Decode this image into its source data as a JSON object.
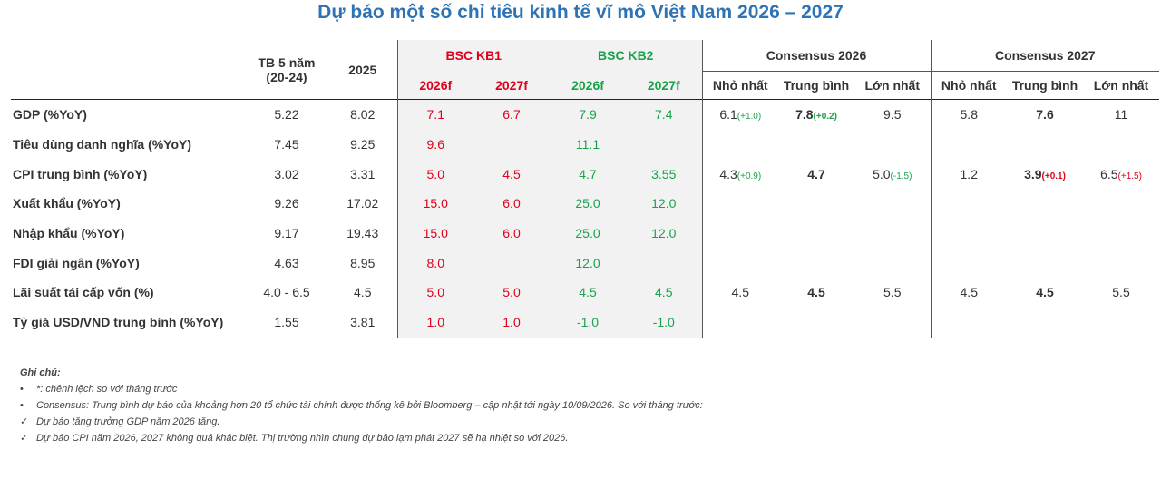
{
  "title": "Dự báo một số chỉ tiêu kinh tế vĩ mô Việt Nam 2026 – 2027",
  "headers": {
    "tb5_line1": "TB 5 năm",
    "tb5_line2": "(20-24)",
    "y2025": "2025",
    "bsc_kb1": "BSC KB1",
    "bsc_kb2": "BSC KB2",
    "consensus_2026": "Consensus 2026",
    "consensus_2027": "Consensus 2027",
    "f2026": "2026f",
    "f2027": "2027f",
    "min": "Nhỏ nhất",
    "avg": "Trung bình",
    "max": "Lớn nhất"
  },
  "rows": [
    {
      "label": "GDP (%YoY)",
      "tb5": "5.22",
      "y2025": "8.02",
      "kb1_2026": "7.1",
      "kb1_2027": "6.7",
      "kb2_2026": "7.9",
      "kb2_2027": "7.4",
      "c26_min": "6.1",
      "c26_min_d": "(+1.0)",
      "c26_avg": "7.8",
      "c26_avg_d": "(+0.2)",
      "c26_max": "9.5",
      "c26_max_d": "",
      "c27_min": "5.8",
      "c27_min_d": "",
      "c27_avg": "7.6",
      "c27_avg_d": "",
      "c27_max": "11",
      "c27_max_d": ""
    },
    {
      "label": "Tiêu dùng danh nghĩa (%YoY)",
      "tb5": "7.45",
      "y2025": "9.25",
      "kb1_2026": "9.6",
      "kb1_2027": "",
      "kb2_2026": "11.1",
      "kb2_2027": "",
      "c26_min": "",
      "c26_min_d": "",
      "c26_avg": "",
      "c26_avg_d": "",
      "c26_max": "",
      "c26_max_d": "",
      "c27_min": "",
      "c27_min_d": "",
      "c27_avg": "",
      "c27_avg_d": "",
      "c27_max": "",
      "c27_max_d": ""
    },
    {
      "label": "CPI trung bình (%YoY)",
      "tb5": "3.02",
      "y2025": "3.31",
      "kb1_2026": "5.0",
      "kb1_2027": "4.5",
      "kb2_2026": "4.7",
      "kb2_2027": "3.55",
      "c26_min": "4.3",
      "c26_min_d": "(+0.9)",
      "c26_avg": "4.7",
      "c26_avg_d": "",
      "c26_max": "5.0",
      "c26_max_d": "(-1.5)",
      "c27_min": "1.2",
      "c27_min_d": "",
      "c27_avg": "3.9",
      "c27_avg_d": "(+0.1)",
      "c27_max": "6.5",
      "c27_max_d": "(+1.5)"
    },
    {
      "label": "Xuất khẩu (%YoY)",
      "tb5": "9.26",
      "y2025": "17.02",
      "kb1_2026": "15.0",
      "kb1_2027": "6.0",
      "kb2_2026": "25.0",
      "kb2_2027": "12.0",
      "c26_min": "",
      "c26_min_d": "",
      "c26_avg": "",
      "c26_avg_d": "",
      "c26_max": "",
      "c26_max_d": "",
      "c27_min": "",
      "c27_min_d": "",
      "c27_avg": "",
      "c27_avg_d": "",
      "c27_max": "",
      "c27_max_d": ""
    },
    {
      "label": "Nhập khẩu (%YoY)",
      "tb5": "9.17",
      "y2025": "19.43",
      "kb1_2026": "15.0",
      "kb1_2027": "6.0",
      "kb2_2026": "25.0",
      "kb2_2027": "12.0",
      "c26_min": "",
      "c26_min_d": "",
      "c26_avg": "",
      "c26_avg_d": "",
      "c26_max": "",
      "c26_max_d": "",
      "c27_min": "",
      "c27_min_d": "",
      "c27_avg": "",
      "c27_avg_d": "",
      "c27_max": "",
      "c27_max_d": ""
    },
    {
      "label": "FDI giải ngân (%YoY)",
      "tb5": "4.63",
      "y2025": "8.95",
      "kb1_2026": "8.0",
      "kb1_2027": "",
      "kb2_2026": "12.0",
      "kb2_2027": "",
      "c26_min": "",
      "c26_min_d": "",
      "c26_avg": "",
      "c26_avg_d": "",
      "c26_max": "",
      "c26_max_d": "",
      "c27_min": "",
      "c27_min_d": "",
      "c27_avg": "",
      "c27_avg_d": "",
      "c27_max": "",
      "c27_max_d": ""
    },
    {
      "label": "Lãi suất tái cấp vốn (%)",
      "tb5": "4.0 - 6.5",
      "y2025": "4.5",
      "kb1_2026": "5.0",
      "kb1_2027": "5.0",
      "kb2_2026": "4.5",
      "kb2_2027": "4.5",
      "c26_min": "4.5",
      "c26_min_d": "",
      "c26_avg": "4.5",
      "c26_avg_d": "",
      "c26_max": "5.5",
      "c26_max_d": "",
      "c27_min": "4.5",
      "c27_min_d": "",
      "c27_avg": "4.5",
      "c27_avg_d": "",
      "c27_max": "5.5",
      "c27_max_d": ""
    },
    {
      "label": "Tỷ giá USD/VND trung bình (%YoY)",
      "tb5": "1.55",
      "y2025": "3.81",
      "kb1_2026": "1.0",
      "kb1_2027": "1.0",
      "kb2_2026": "-1.0",
      "kb2_2027": "-1.0",
      "c26_min": "",
      "c26_min_d": "",
      "c26_avg": "",
      "c26_avg_d": "",
      "c26_max": "",
      "c26_max_d": "",
      "c27_min": "",
      "c27_min_d": "",
      "c27_avg": "",
      "c27_avg_d": "",
      "c27_max": "",
      "c27_max_d": ""
    }
  ],
  "notes": {
    "heading": "Ghi chú:",
    "items": [
      {
        "marker": "•",
        "text": "*: chênh lệch so với tháng trước"
      },
      {
        "marker": "•",
        "text": "Consensus: Trung bình dự báo của khoảng hơn 20 tổ chức tài chính được thống kê bởi Bloomberg – cập nhật tới ngày 10/09/2026. So với tháng trước:"
      },
      {
        "marker": "✓",
        "text": "Dự báo tăng trưởng GDP năm 2026 tăng."
      },
      {
        "marker": "✓",
        "text": "Dự báo CPI năm 2026, 2027 không quá khác biệt. Thị trường nhìn chung dự báo lạm phát 2027 sẽ hạ nhiệt so với 2026."
      }
    ]
  },
  "colors": {
    "title": "#2e74b5",
    "bsc_kb1": "#e0001b",
    "bsc_kb2": "#18a34a",
    "bsc_bg": "#f2f2f2"
  }
}
